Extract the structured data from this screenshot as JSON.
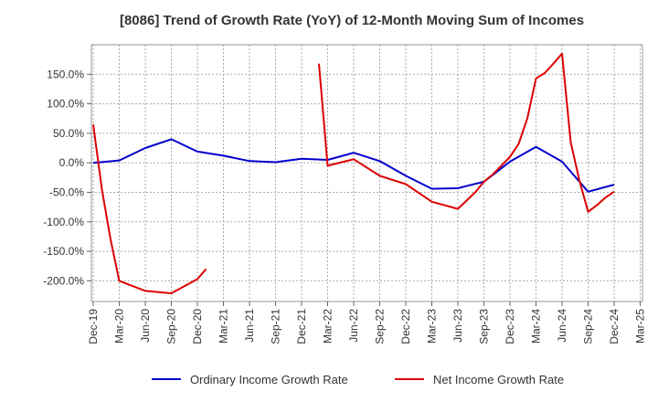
{
  "chart_data": {
    "type": "line",
    "title": "[8086]  Trend of Growth Rate (YoY) of 12-Month Moving Sum of Incomes",
    "xlabel": "",
    "ylabel": "",
    "ylim": [
      -235,
      200
    ],
    "grid": true,
    "legend_position": "bottom",
    "x_ticks": [
      "Dec-19",
      "Mar-20",
      "Jun-20",
      "Sep-20",
      "Dec-20",
      "Mar-21",
      "Jun-21",
      "Sep-21",
      "Dec-21",
      "Mar-22",
      "Jun-22",
      "Sep-22",
      "Dec-22",
      "Mar-23",
      "Jun-23",
      "Sep-23",
      "Dec-23",
      "Mar-24",
      "Jun-24",
      "Sep-24",
      "Dec-24",
      "Mar-25"
    ],
    "y_ticks": [
      {
        "value": 150,
        "label": "150.0%"
      },
      {
        "value": 100,
        "label": "100.0%"
      },
      {
        "value": 50,
        "label": "50.0%"
      },
      {
        "value": 0,
        "label": "0.0%"
      },
      {
        "value": -50,
        "label": "-50.0%"
      },
      {
        "value": -100,
        "label": "-100.0%"
      },
      {
        "value": -150,
        "label": "-150.0%"
      },
      {
        "value": -200,
        "label": "-200.0%"
      }
    ],
    "series": [
      {
        "name": "Ordinary Income Growth Rate",
        "color": "#0000cc",
        "points": [
          {
            "x": "Dec-19",
            "y": 0
          },
          {
            "x": "Mar-20",
            "y": 4
          },
          {
            "x": "Jun-20",
            "y": 25
          },
          {
            "x": "Sep-20",
            "y": 40
          },
          {
            "x": "Dec-20",
            "y": 19
          },
          {
            "x": "Mar-21",
            "y": 12
          },
          {
            "x": "Jun-21",
            "y": 3
          },
          {
            "x": "Sep-21",
            "y": 1
          },
          {
            "x": "Dec-21",
            "y": 7
          },
          {
            "x": "Mar-22",
            "y": 5
          },
          {
            "x": "Jun-22",
            "y": 17
          },
          {
            "x": "Sep-22",
            "y": 3
          },
          {
            "x": "Dec-22",
            "y": -22
          },
          {
            "x": "Mar-23",
            "y": -44
          },
          {
            "x": "Jun-23",
            "y": -43
          },
          {
            "x": "Sep-23",
            "y": -32
          },
          {
            "x": "Dec-23",
            "y": 2
          },
          {
            "x": "Mar-24",
            "y": 27
          },
          {
            "x": "Jun-24",
            "y": 2
          },
          {
            "x": "Sep-24",
            "y": -49
          },
          {
            "x": "Dec-24",
            "y": -37
          }
        ]
      },
      {
        "name": "Net Income Growth Rate",
        "color": "#dd0000",
        "segments": [
          [
            {
              "x": "Dec-19",
              "y": 65
            },
            {
              "x": "Jan-20",
              "y": -45
            },
            {
              "x": "Feb-20",
              "y": -130
            },
            {
              "x": "Mar-20",
              "y": -200
            },
            {
              "x": "Jun-20",
              "y": -217
            },
            {
              "x": "Sep-20",
              "y": -221
            },
            {
              "x": "Dec-20",
              "y": -197
            },
            {
              "x": "Jan-21",
              "y": -180
            }
          ],
          [
            {
              "x": "Feb-22",
              "y": 168
            },
            {
              "x": "Mar-22",
              "y": -5
            },
            {
              "x": "Jun-22",
              "y": 6
            },
            {
              "x": "Sep-22",
              "y": -22
            },
            {
              "x": "Dec-22",
              "y": -36
            },
            {
              "x": "Mar-23",
              "y": -66
            },
            {
              "x": "Jun-23",
              "y": -78
            },
            {
              "x": "Aug-23",
              "y": -50
            },
            {
              "x": "Sep-23",
              "y": -32
            },
            {
              "x": "Oct-23",
              "y": -20
            },
            {
              "x": "Nov-23",
              "y": -5
            },
            {
              "x": "Dec-23",
              "y": 10
            },
            {
              "x": "Jan-24",
              "y": 32
            },
            {
              "x": "Feb-24",
              "y": 75
            },
            {
              "x": "Mar-24",
              "y": 143
            },
            {
              "x": "Apr-24",
              "y": 152
            },
            {
              "x": "May-24",
              "y": 168
            },
            {
              "x": "Jun-24",
              "y": 185
            },
            {
              "x": "Jul-24",
              "y": 35
            },
            {
              "x": "Aug-24",
              "y": -30
            },
            {
              "x": "Sep-24",
              "y": -83
            },
            {
              "x": "Oct-24",
              "y": -72
            },
            {
              "x": "Nov-24",
              "y": -59
            },
            {
              "x": "Dec-24",
              "y": -49
            }
          ]
        ]
      }
    ]
  }
}
